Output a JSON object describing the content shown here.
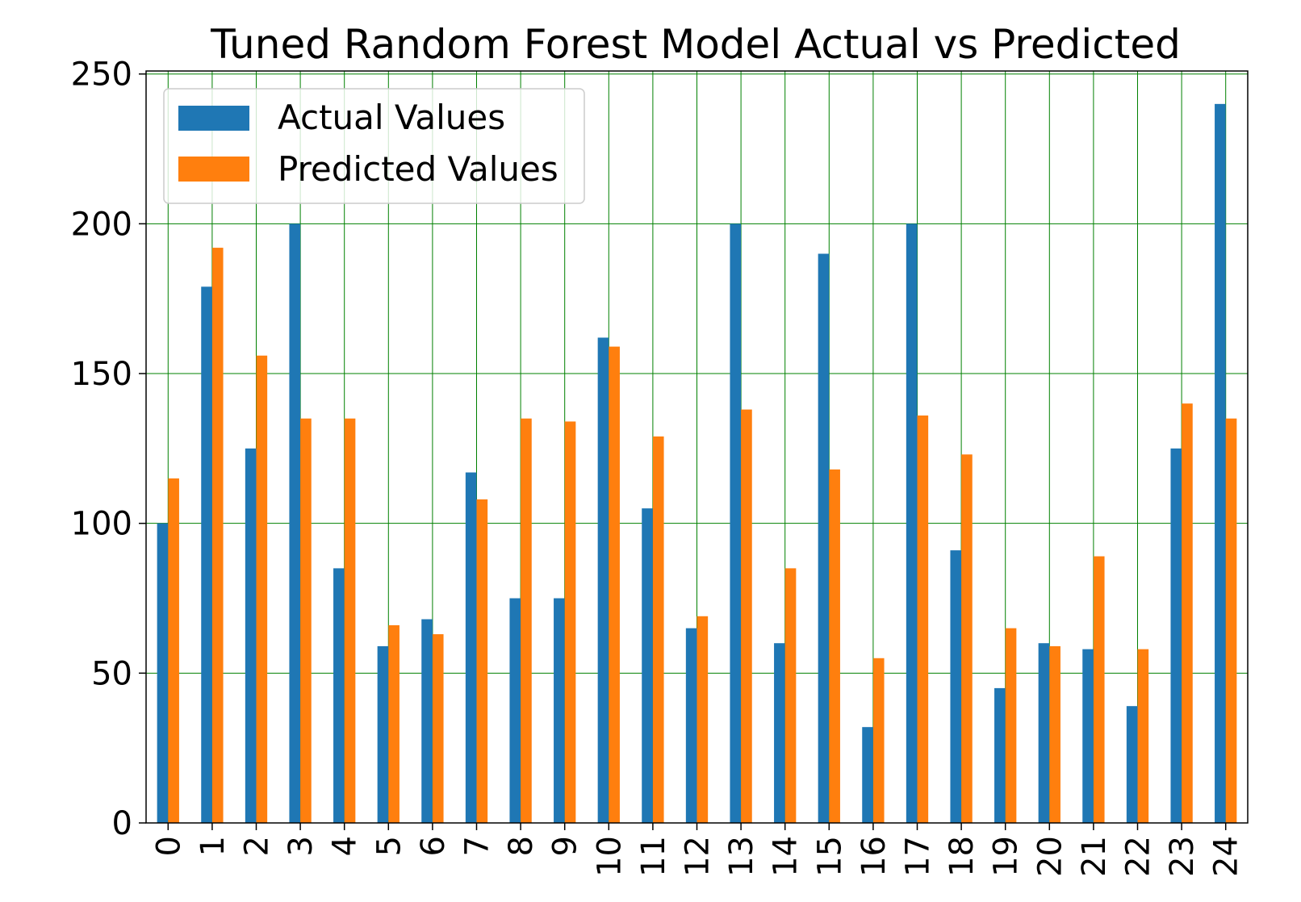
{
  "chart_data": {
    "type": "bar",
    "title": "Tuned Random Forest Model Actual vs Predicted",
    "xlabel": "",
    "ylabel": "",
    "categories": [
      "0",
      "1",
      "2",
      "3",
      "4",
      "5",
      "6",
      "7",
      "8",
      "9",
      "10",
      "11",
      "12",
      "13",
      "14",
      "15",
      "16",
      "17",
      "18",
      "19",
      "20",
      "21",
      "22",
      "23",
      "24"
    ],
    "series": [
      {
        "name": "Actual Values",
        "color": "#1f77b4",
        "values": [
          100,
          179,
          125,
          200,
          85,
          59,
          68,
          117,
          75,
          75,
          162,
          105,
          65,
          200,
          60,
          190,
          32,
          200,
          91,
          45,
          60,
          58,
          39,
          125,
          240
        ]
      },
      {
        "name": "Predicted Values",
        "color": "#ff7f0e",
        "values": [
          115,
          192,
          156,
          135,
          135,
          66,
          63,
          108,
          135,
          134,
          159,
          129,
          69,
          138,
          85,
          118,
          55,
          136,
          123,
          65,
          59,
          89,
          58,
          140,
          135
        ]
      }
    ],
    "ylim": [
      0,
      251
    ],
    "yticks": [
      0,
      50,
      100,
      150,
      200,
      250
    ],
    "grid": true,
    "grid_color": "#008000",
    "legend_position": "upper left"
  }
}
